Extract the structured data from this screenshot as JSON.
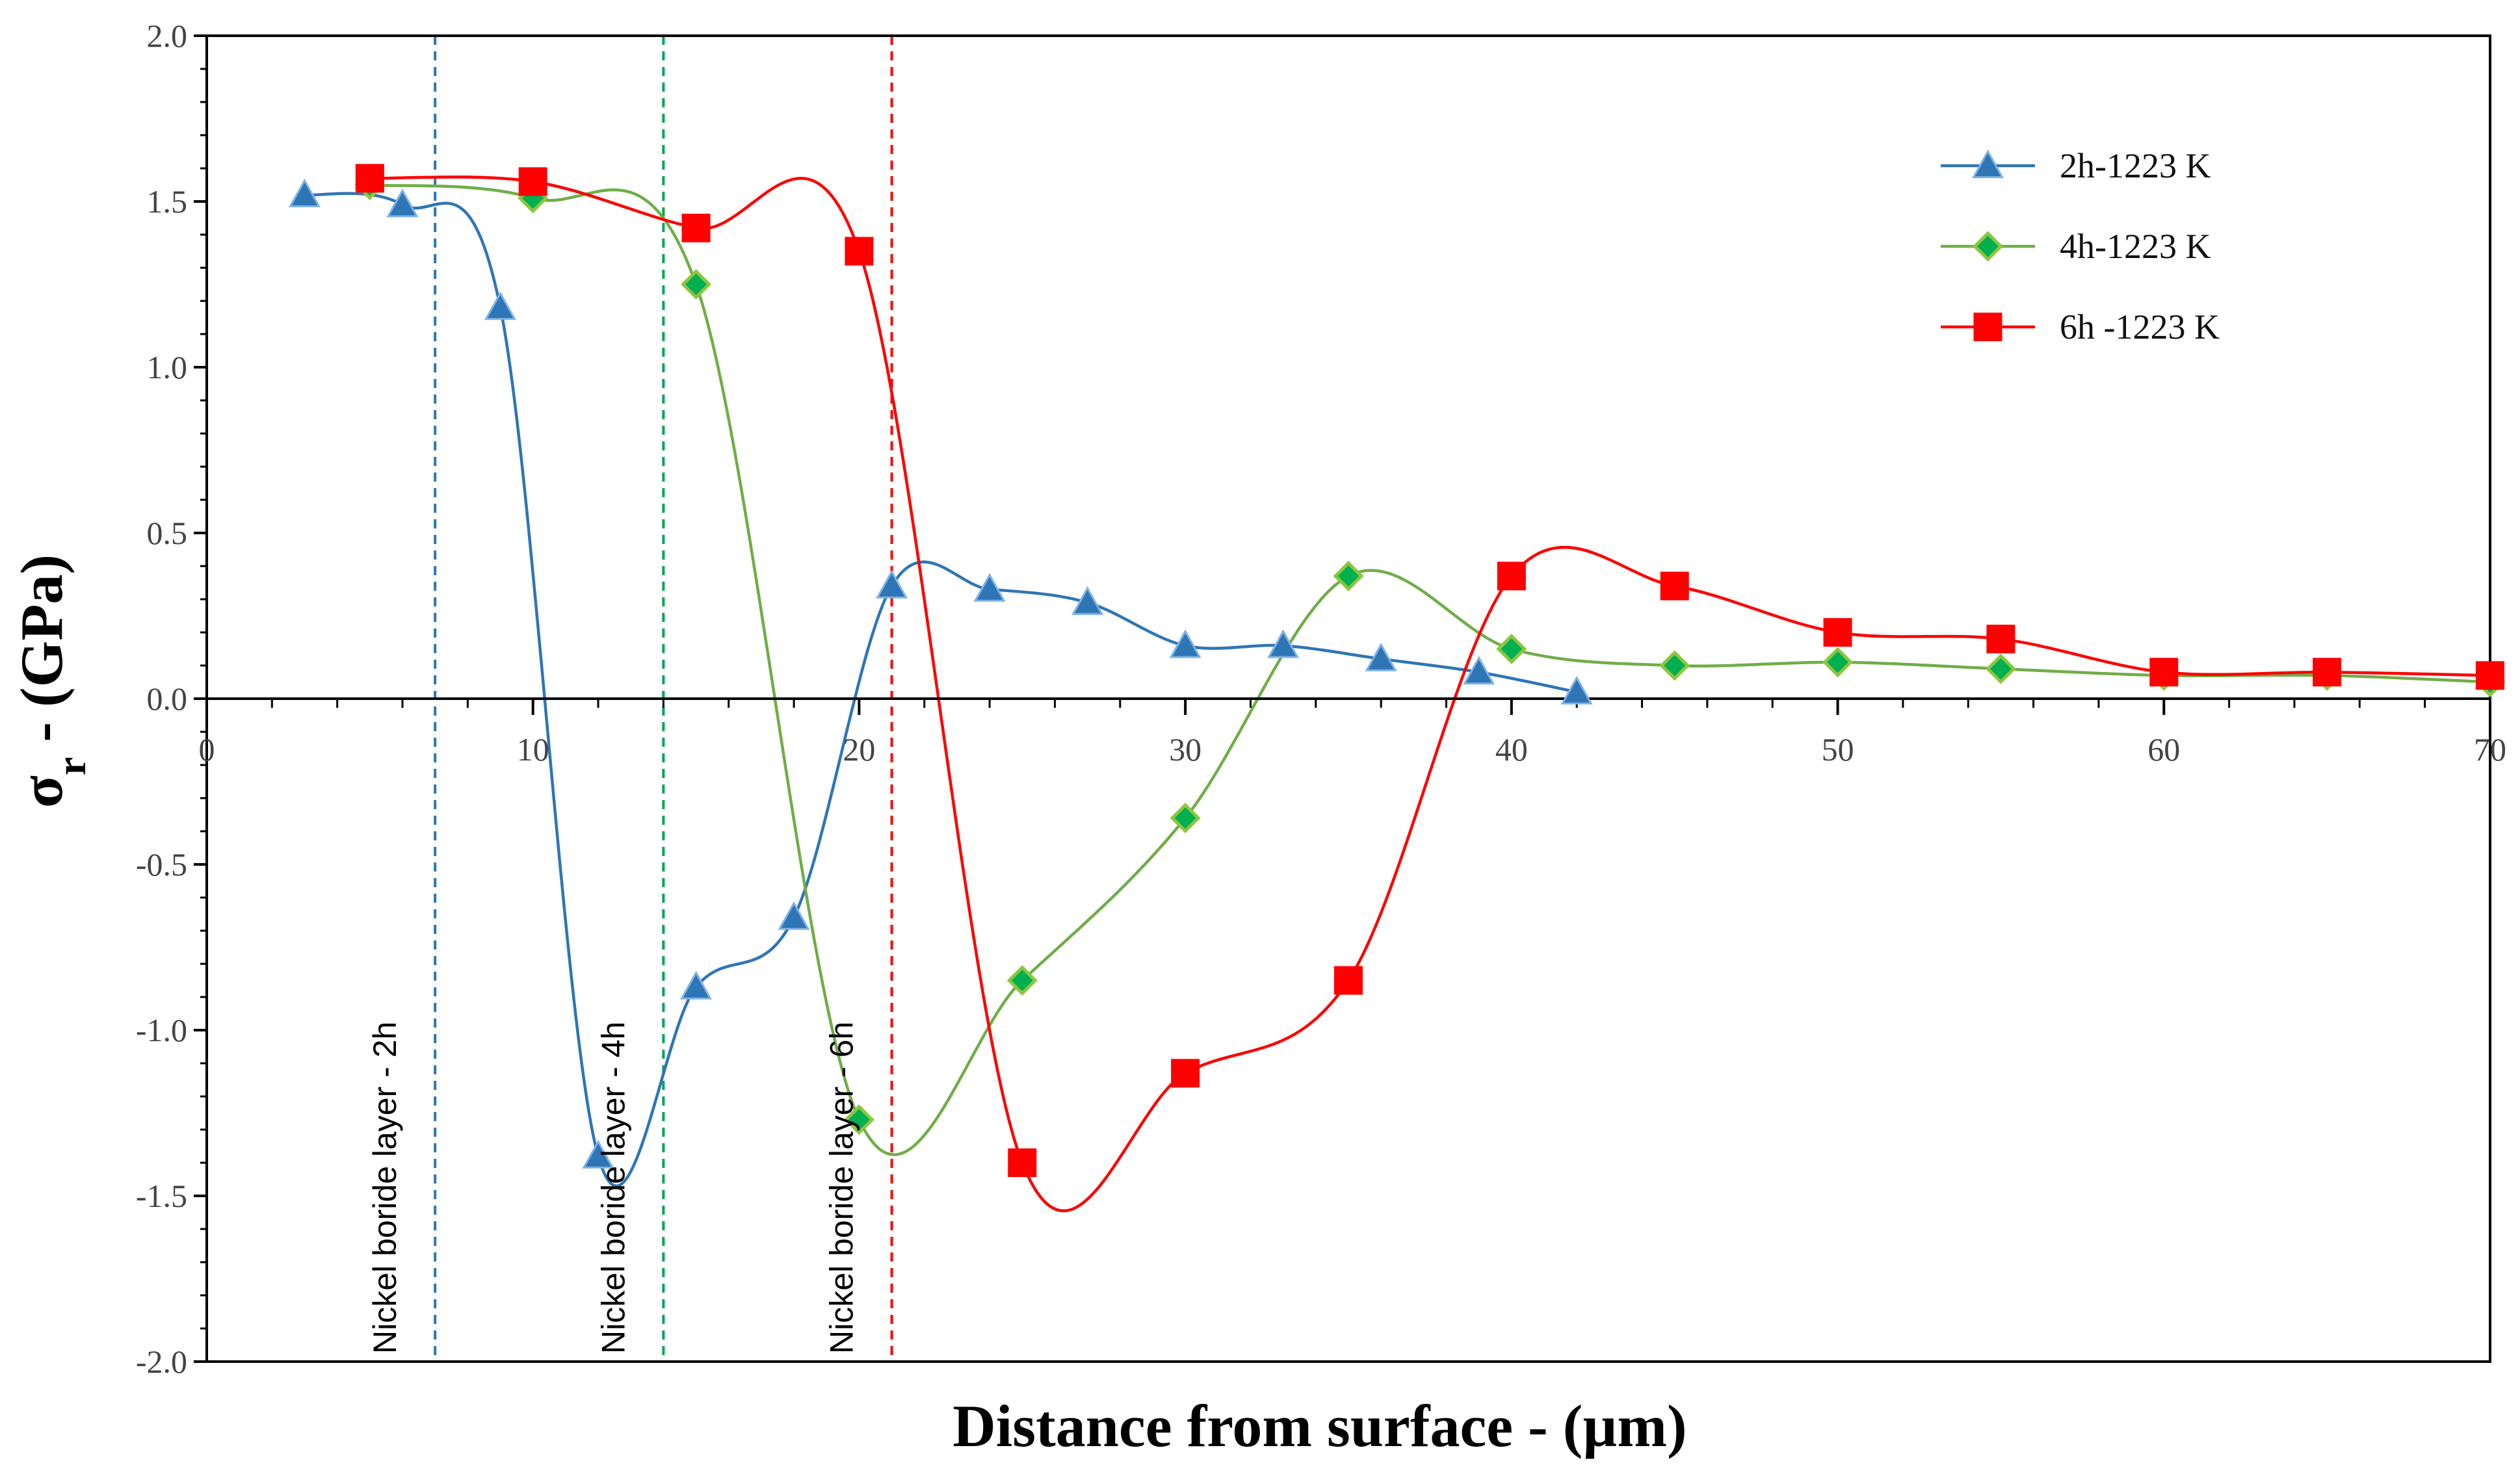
{
  "chart_data": {
    "type": "line",
    "title": "",
    "xlabel": "Distance from surface - (µm)",
    "ylabel_main": "σ",
    "ylabel_sub": "r",
    "ylabel_rest": " - (GPa)",
    "xlim": [
      0,
      70
    ],
    "ylim": [
      -2.0,
      2.0
    ],
    "x_ticks": [
      0,
      10,
      20,
      30,
      40,
      50,
      60,
      70
    ],
    "x_tick_labels": [
      "0",
      "10",
      "20",
      "30",
      "40",
      "50",
      "60",
      "70"
    ],
    "y_ticks": [
      2.0,
      1.5,
      1.0,
      0.5,
      0.0,
      -0.5,
      -1.0,
      -1.5,
      -2.0
    ],
    "y_tick_labels": [
      "2.0",
      "1.5",
      "1.0",
      "0.5",
      "0.0",
      "-0.5",
      "-1.0",
      "-1.5",
      "-2.0"
    ],
    "grid": false,
    "legend_position": "top-right",
    "series": [
      {
        "name": "2h-1223 K",
        "color": "#2E75B6",
        "marker": "triangle",
        "x": [
          3,
          6,
          9,
          12,
          15,
          18,
          21,
          24,
          27,
          30,
          33,
          36,
          39,
          42
        ],
        "y": [
          1.52,
          1.49,
          1.18,
          -1.38,
          -0.87,
          -0.66,
          0.34,
          0.33,
          0.29,
          0.16,
          0.16,
          0.12,
          0.08,
          0.02
        ]
      },
      {
        "name": "4h-1223 K",
        "color": "#70AD47",
        "marker": "diamond",
        "x": [
          5,
          10,
          15,
          20,
          25,
          30,
          35,
          40,
          45,
          50,
          55,
          60,
          65,
          70
        ],
        "y": [
          1.55,
          1.51,
          1.25,
          -1.27,
          -0.85,
          -0.36,
          0.37,
          0.15,
          0.1,
          0.11,
          0.09,
          0.07,
          0.07,
          0.05
        ]
      },
      {
        "name": "6h -1223 K",
        "color": "#FF0000",
        "marker": "square",
        "x": [
          5,
          10,
          15,
          20,
          25,
          30,
          35,
          40,
          45,
          50,
          55,
          60,
          65,
          70
        ],
        "y": [
          1.57,
          1.56,
          1.42,
          1.35,
          -1.4,
          -1.13,
          -0.85,
          0.37,
          0.34,
          0.2,
          0.18,
          0.08,
          0.08,
          0.07
        ]
      }
    ],
    "vertical_lines": [
      {
        "x": 7,
        "label": "Nickel boride layer - 2h",
        "color": "#2E75B6"
      },
      {
        "x": 14,
        "label": "Nickel boride layer - 4h",
        "color": "#00A651"
      },
      {
        "x": 21,
        "label": "Nickel boride layer - 6h",
        "color": "#FF0000"
      }
    ]
  }
}
